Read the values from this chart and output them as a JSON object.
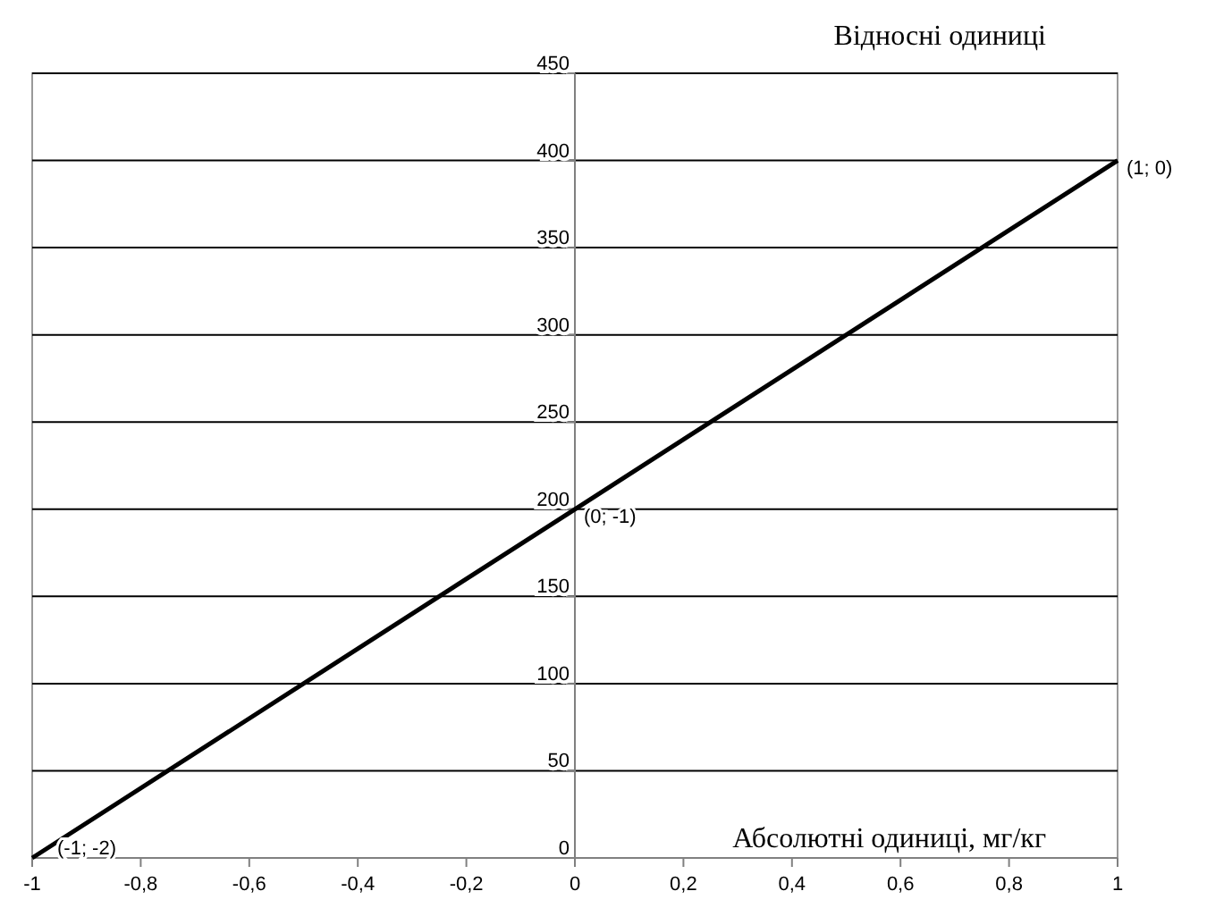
{
  "chart_data": {
    "type": "line",
    "xlabel": "Абсолютні одиниці, мг/кг",
    "ylabel": "Відносні одиниці",
    "x": [
      -1,
      0,
      1
    ],
    "series": [
      {
        "color": "#000000",
        "values": [
          0,
          200,
          400
        ]
      }
    ],
    "xlim": [
      -1,
      1
    ],
    "xticks": [
      {
        "value": -1,
        "label": "-1"
      },
      {
        "value": -0.8,
        "label": "-0,8"
      },
      {
        "value": -0.6,
        "label": "-0,6"
      },
      {
        "value": -0.4,
        "label": "-0,4"
      },
      {
        "value": -0.2,
        "label": "-0,2"
      },
      0,
      {
        "value": 0.2,
        "label": "0,2"
      },
      {
        "value": 0.4,
        "label": "0,4"
      },
      {
        "value": 0.6,
        "label": "0,6"
      },
      {
        "value": 0.8,
        "label": "0,8"
      },
      1
    ],
    "ylim": [
      0,
      450
    ],
    "yticks": [
      0,
      50,
      100,
      150,
      200,
      250,
      300,
      350,
      400,
      450
    ],
    "grid": "y",
    "marker": "none",
    "line_style": "solid",
    "annotations": [
      {
        "text": "(-1; -2)",
        "x": -1,
        "y": 0
      },
      {
        "text": "(0; -1)",
        "x": 0,
        "y": 200
      },
      {
        "text": "(1; 0)",
        "x": 1,
        "y": 400
      }
    ]
  }
}
